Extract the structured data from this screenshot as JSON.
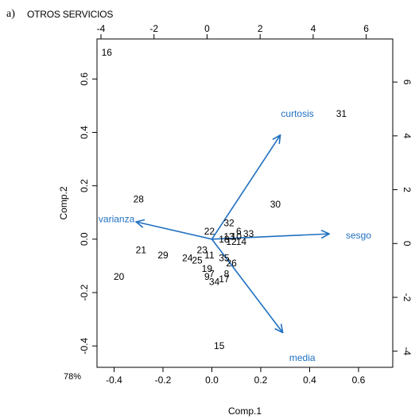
{
  "figure_label": "a)",
  "title": "OTROS SERVICIOS",
  "corner_note": "78%",
  "chart_data": {
    "type": "scatter",
    "subtype": "biplot",
    "xlabel": "Comp.1",
    "ylabel": "Comp.2",
    "xlim": [
      -0.47,
      0.74
    ],
    "ylim": [
      -0.48,
      0.75
    ],
    "x_ticks": [
      "-0.4",
      "-0.2",
      "0.0",
      "0.2",
      "0.4",
      "0.6"
    ],
    "y_ticks": [
      "-0.4",
      "-0.2",
      "0.0",
      "0.2",
      "0.4",
      "0.6"
    ],
    "top_ticks": [
      "-4",
      "-2",
      "0",
      "2",
      "4",
      "6"
    ],
    "right_ticks": [
      "-4",
      "-2",
      "0",
      "2",
      "4",
      "6"
    ],
    "points": [
      {
        "label": "16",
        "x": -0.43,
        "y": 0.7
      },
      {
        "label": "31",
        "x": 0.53,
        "y": 0.47
      },
      {
        "label": "30",
        "x": 0.26,
        "y": 0.13
      },
      {
        "label": "28",
        "x": -0.3,
        "y": 0.15
      },
      {
        "label": "32",
        "x": 0.07,
        "y": 0.06
      },
      {
        "label": "22",
        "x": -0.01,
        "y": 0.03
      },
      {
        "label": "6",
        "x": 0.11,
        "y": 0.03
      },
      {
        "label": "33",
        "x": 0.15,
        "y": 0.02
      },
      {
        "label": "13",
        "x": 0.07,
        "y": 0.01
      },
      {
        "label": "10",
        "x": 0.1,
        "y": 0.01
      },
      {
        "label": "18",
        "x": 0.05,
        "y": 0.0
      },
      {
        "label": "12",
        "x": 0.08,
        "y": -0.01
      },
      {
        "label": "14",
        "x": 0.12,
        "y": -0.01
      },
      {
        "label": "21",
        "x": -0.29,
        "y": -0.04
      },
      {
        "label": "29",
        "x": -0.2,
        "y": -0.06
      },
      {
        "label": "24",
        "x": -0.1,
        "y": -0.07
      },
      {
        "label": "23",
        "x": -0.04,
        "y": -0.04
      },
      {
        "label": "11",
        "x": -0.01,
        "y": -0.06
      },
      {
        "label": "25",
        "x": -0.06,
        "y": -0.08
      },
      {
        "label": "35",
        "x": 0.05,
        "y": -0.07
      },
      {
        "label": "26",
        "x": 0.08,
        "y": -0.09
      },
      {
        "label": "19",
        "x": -0.02,
        "y": -0.11
      },
      {
        "label": "7",
        "x": 0.0,
        "y": -0.13
      },
      {
        "label": "9",
        "x": -0.02,
        "y": -0.14
      },
      {
        "label": "8",
        "x": 0.06,
        "y": -0.13
      },
      {
        "label": "17",
        "x": 0.05,
        "y": -0.15
      },
      {
        "label": "34",
        "x": 0.01,
        "y": -0.16
      },
      {
        "label": "20",
        "x": -0.38,
        "y": -0.14
      },
      {
        "label": "15",
        "x": 0.03,
        "y": -0.4
      }
    ],
    "arrows": [
      {
        "label": "curtosis",
        "x": 0.28,
        "y": 0.39,
        "label_x": 0.35,
        "label_y": 0.47
      },
      {
        "label": "sesgo",
        "x": 0.48,
        "y": 0.02,
        "label_x": 0.6,
        "label_y": 0.015
      },
      {
        "label": "varianza",
        "x": -0.31,
        "y": 0.065,
        "label_x": -0.39,
        "label_y": 0.075
      },
      {
        "label": "media",
        "x": 0.29,
        "y": -0.35,
        "label_x": 0.37,
        "label_y": -0.445
      }
    ],
    "point_color": "#000000",
    "arrow_color": "#1f6fc1"
  }
}
